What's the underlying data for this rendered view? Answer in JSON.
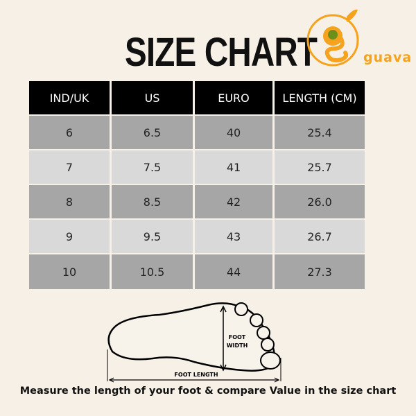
{
  "title": "SIZE CHART",
  "logo": {
    "text": "guava",
    "colors": {
      "orange": "#f5a21c",
      "green": "#6a8f1a"
    }
  },
  "table": {
    "headers": [
      "IND/UK",
      "US",
      "EURO",
      "LENGTH (CM)"
    ],
    "rows": [
      [
        "6",
        "6.5",
        "40",
        "25.4"
      ],
      [
        "7",
        "7.5",
        "41",
        "25.7"
      ],
      [
        "8",
        "8.5",
        "42",
        "26.0"
      ],
      [
        "9",
        "9.5",
        "43",
        "26.7"
      ],
      [
        "10",
        "10.5",
        "44",
        "27.3"
      ]
    ]
  },
  "diagram": {
    "width_label_1": "FOOT",
    "width_label_2": "WIDTH",
    "length_label": "FOOT LENGTH"
  },
  "caption": "Measure the length of  your foot & compare Value in the size chart"
}
